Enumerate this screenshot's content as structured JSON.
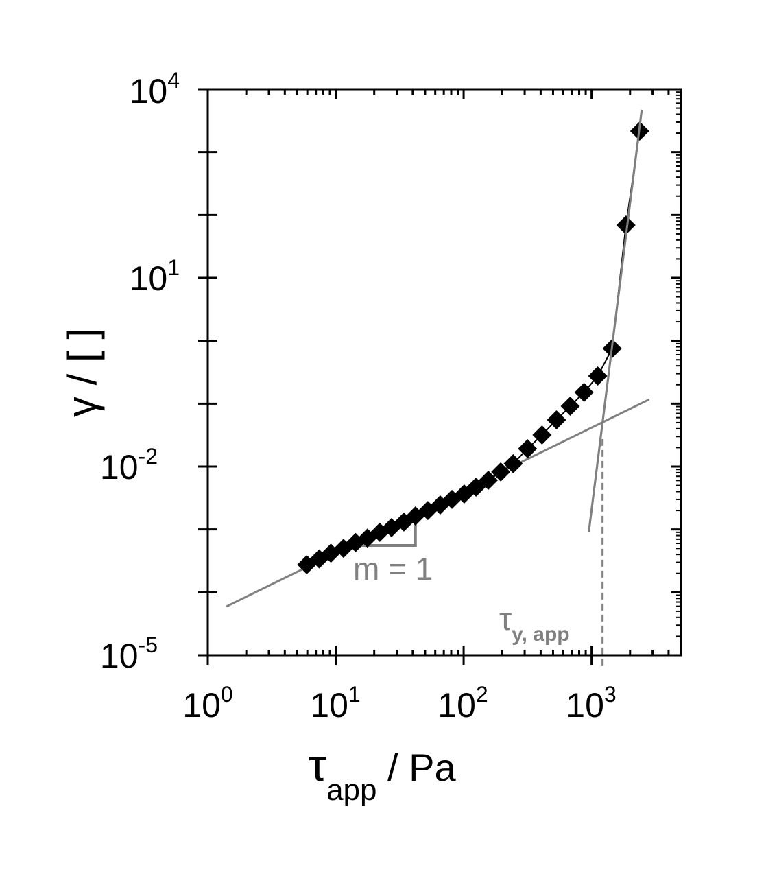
{
  "chart_data": {
    "type": "scatter",
    "xlabel": {
      "symbol": "τ",
      "subscript": "app",
      "unit": " / Pa"
    },
    "ylabel": "γ / [ ]",
    "xscale": "log",
    "yscale": "log",
    "xlim": [
      1,
      5000
    ],
    "ylim": [
      1e-05,
      10000
    ],
    "x_ticks": [
      {
        "base": "10",
        "exp": "0",
        "value": 1
      },
      {
        "base": "10",
        "exp": "1",
        "value": 10
      },
      {
        "base": "10",
        "exp": "2",
        "value": 100
      },
      {
        "base": "10",
        "exp": "3",
        "value": 1000
      }
    ],
    "y_ticks": [
      {
        "base": "10",
        "exp": "-5",
        "value": 1e-05
      },
      {
        "base": "10",
        "exp": "-2",
        "value": 0.01
      },
      {
        "base": "10",
        "exp": "1",
        "value": 10
      },
      {
        "base": "10",
        "exp": "4",
        "value": 10000
      }
    ],
    "grid": false,
    "colors": {
      "data": "#000000",
      "fit": "#808080"
    },
    "series": [
      {
        "marker": "diamond",
        "line": true,
        "x": [
          5.94,
          7.43,
          9.17,
          11.5,
          14.3,
          17.7,
          22.1,
          27.3,
          34.1,
          42.0,
          52.5,
          65.6,
          81.1,
          101,
          125,
          156,
          195,
          244,
          316,
          410,
          532,
          681,
          873,
          1117,
          1449,
          1857,
          2377
        ],
        "y": [
          0.000275,
          0.00034,
          0.00042,
          0.0005,
          0.00062,
          0.00073,
          0.0009,
          0.00107,
          0.00131,
          0.00164,
          0.002,
          0.00245,
          0.003,
          0.00366,
          0.0047,
          0.00605,
          0.0082,
          0.0111,
          0.0192,
          0.0318,
          0.0552,
          0.0912,
          0.151,
          0.275,
          0.752,
          69,
          2160
        ]
      }
    ],
    "fit_lines": [
      {
        "x": [
          1.4,
          2830
        ],
        "y": [
          5.96e-05,
          0.117
        ]
      },
      {
        "x": [
          951,
          2468
        ],
        "y": [
          0.000897,
          4710
        ]
      }
    ],
    "slope_triangle": {
      "x": [
        14.1,
        42.0
      ],
      "y": [
        0.000557,
        0.00164
      ],
      "label": "m = 1"
    },
    "yield_marker": {
      "x": 1219,
      "y_top": 0.0274,
      "label_symbol": "τ",
      "label_subscript": "y, app"
    }
  }
}
